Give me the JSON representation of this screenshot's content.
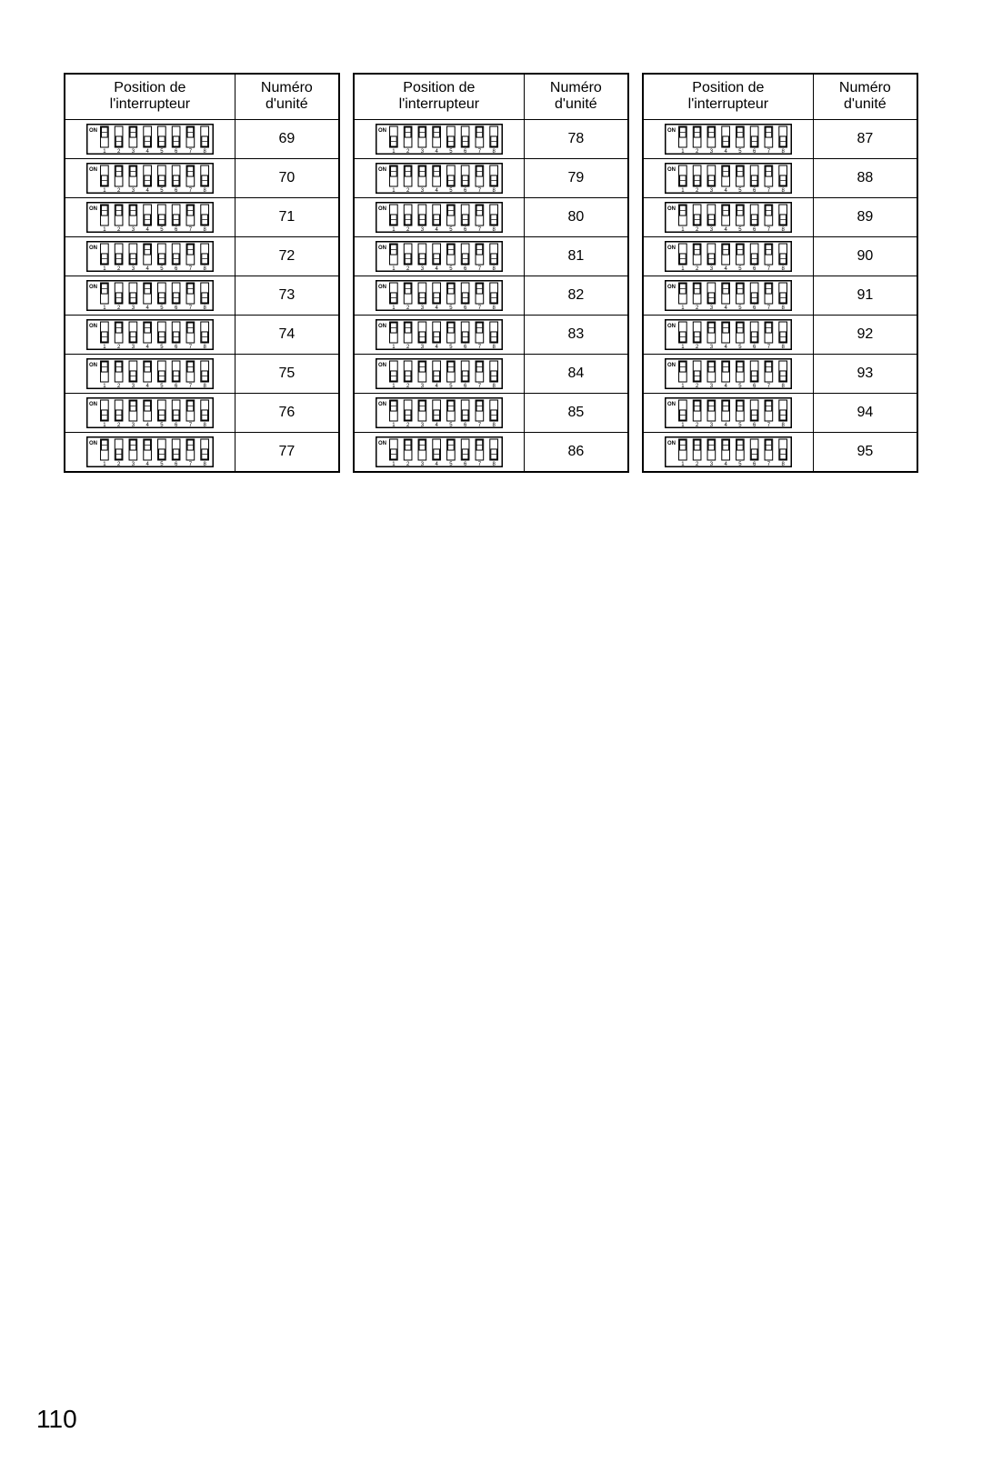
{
  "page_number": "110",
  "headers": {
    "position": "Position de\nl'interrupteur",
    "unit": "Numéro\nd'unité"
  },
  "dip": {
    "on_label": "ON",
    "switch_numbers": [
      "1",
      "2",
      "3",
      "4",
      "5",
      "6",
      "7",
      "8"
    ],
    "frame_color": "#000000",
    "bg_color": "#ffffff",
    "width": 140,
    "height": 34,
    "font_size_on": 6,
    "font_size_num": 6
  },
  "columns": [
    {
      "rows": [
        {
          "unit": "69",
          "switches": [
            1,
            0,
            1,
            0,
            0,
            0,
            1,
            0
          ]
        },
        {
          "unit": "70",
          "switches": [
            0,
            1,
            1,
            0,
            0,
            0,
            1,
            0
          ]
        },
        {
          "unit": "71",
          "switches": [
            1,
            1,
            1,
            0,
            0,
            0,
            1,
            0
          ]
        },
        {
          "unit": "72",
          "switches": [
            0,
            0,
            0,
            1,
            0,
            0,
            1,
            0
          ]
        },
        {
          "unit": "73",
          "switches": [
            1,
            0,
            0,
            1,
            0,
            0,
            1,
            0
          ]
        },
        {
          "unit": "74",
          "switches": [
            0,
            1,
            0,
            1,
            0,
            0,
            1,
            0
          ]
        },
        {
          "unit": "75",
          "switches": [
            1,
            1,
            0,
            1,
            0,
            0,
            1,
            0
          ]
        },
        {
          "unit": "76",
          "switches": [
            0,
            0,
            1,
            1,
            0,
            0,
            1,
            0
          ]
        },
        {
          "unit": "77",
          "switches": [
            1,
            0,
            1,
            1,
            0,
            0,
            1,
            0
          ]
        }
      ]
    },
    {
      "rows": [
        {
          "unit": "78",
          "switches": [
            0,
            1,
            1,
            1,
            0,
            0,
            1,
            0
          ]
        },
        {
          "unit": "79",
          "switches": [
            1,
            1,
            1,
            1,
            0,
            0,
            1,
            0
          ]
        },
        {
          "unit": "80",
          "switches": [
            0,
            0,
            0,
            0,
            1,
            0,
            1,
            0
          ]
        },
        {
          "unit": "81",
          "switches": [
            1,
            0,
            0,
            0,
            1,
            0,
            1,
            0
          ]
        },
        {
          "unit": "82",
          "switches": [
            0,
            1,
            0,
            0,
            1,
            0,
            1,
            0
          ]
        },
        {
          "unit": "83",
          "switches": [
            1,
            1,
            0,
            0,
            1,
            0,
            1,
            0
          ]
        },
        {
          "unit": "84",
          "switches": [
            0,
            0,
            1,
            0,
            1,
            0,
            1,
            0
          ]
        },
        {
          "unit": "85",
          "switches": [
            1,
            0,
            1,
            0,
            1,
            0,
            1,
            0
          ]
        },
        {
          "unit": "86",
          "switches": [
            0,
            1,
            1,
            0,
            1,
            0,
            1,
            0
          ]
        }
      ]
    },
    {
      "rows": [
        {
          "unit": "87",
          "switches": [
            1,
            1,
            1,
            0,
            1,
            0,
            1,
            0
          ]
        },
        {
          "unit": "88",
          "switches": [
            0,
            0,
            0,
            1,
            1,
            0,
            1,
            0
          ]
        },
        {
          "unit": "89",
          "switches": [
            1,
            0,
            0,
            1,
            1,
            0,
            1,
            0
          ]
        },
        {
          "unit": "90",
          "switches": [
            0,
            1,
            0,
            1,
            1,
            0,
            1,
            0
          ]
        },
        {
          "unit": "91",
          "switches": [
            1,
            1,
            0,
            1,
            1,
            0,
            1,
            0
          ]
        },
        {
          "unit": "92",
          "switches": [
            0,
            0,
            1,
            1,
            1,
            0,
            1,
            0
          ]
        },
        {
          "unit": "93",
          "switches": [
            1,
            0,
            1,
            1,
            1,
            0,
            1,
            0
          ]
        },
        {
          "unit": "94",
          "switches": [
            0,
            1,
            1,
            1,
            1,
            0,
            1,
            0
          ]
        },
        {
          "unit": "95",
          "switches": [
            1,
            1,
            1,
            1,
            1,
            0,
            1,
            0
          ]
        }
      ]
    }
  ]
}
